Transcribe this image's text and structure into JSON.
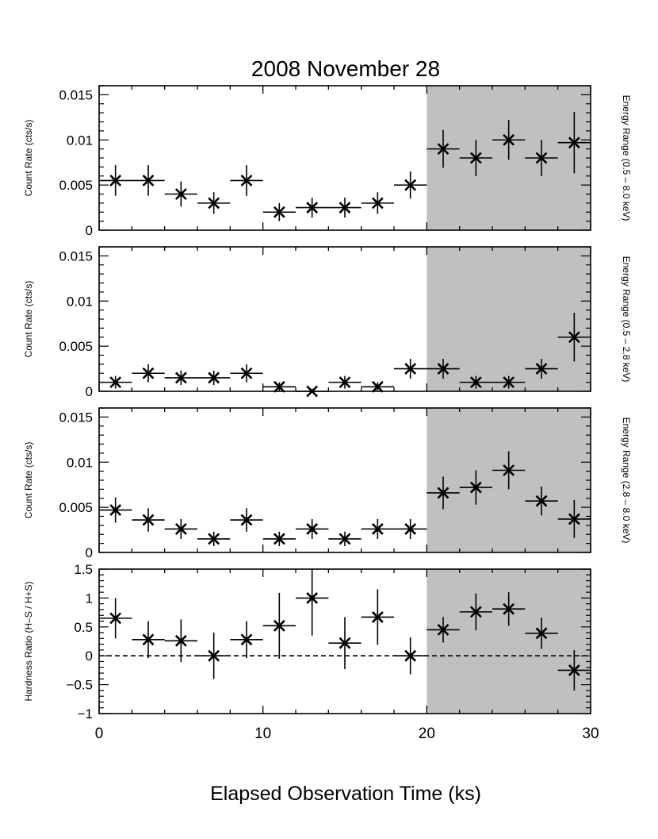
{
  "figure": {
    "title": "2008 November 28",
    "xlabel": "Elapsed Observation Time (ks)",
    "xlim": [
      0,
      30
    ],
    "xticks": [
      0,
      10,
      20,
      30
    ],
    "shade_range": [
      20,
      30
    ],
    "shade_color": "#c0c0c0",
    "x_bin_halfwidth": 1
  },
  "chart_data": [
    {
      "type": "scatter",
      "ylabel": "Count Rate (cts/s)",
      "right_label": "Energy Range (0.5 – 8.0 keV)",
      "ylim": [
        0,
        0.016
      ],
      "yticks": [
        0,
        0.005,
        0.01,
        0.015
      ],
      "ytick_labels": [
        "0",
        "0.005",
        "0.01",
        "0.015"
      ],
      "x": [
        1,
        3,
        5,
        7,
        9,
        11,
        13,
        15,
        17,
        19,
        21,
        23,
        25,
        27,
        29
      ],
      "y": [
        0.0055,
        0.0055,
        0.004,
        0.003,
        0.0055,
        0.002,
        0.0025,
        0.0025,
        0.003,
        0.005,
        0.009,
        0.008,
        0.01,
        0.008,
        0.0097
      ],
      "y_err": [
        0.0017,
        0.0017,
        0.0014,
        0.0012,
        0.0017,
        0.001,
        0.0011,
        0.0011,
        0.0012,
        0.0015,
        0.0021,
        0.002,
        0.0022,
        0.002,
        0.0034
      ]
    },
    {
      "type": "scatter",
      "ylabel": "Count Rate (cts/s)",
      "right_label": "Energy Range (0.5 – 2.8 keV)",
      "ylim": [
        0,
        0.016
      ],
      "yticks": [
        0,
        0.005,
        0.01,
        0.015
      ],
      "ytick_labels": [
        "0",
        "0.005",
        "0.01",
        "0.015"
      ],
      "x": [
        1,
        3,
        5,
        7,
        9,
        11,
        13,
        15,
        17,
        19,
        21,
        23,
        25,
        27,
        29
      ],
      "y": [
        0.001,
        0.002,
        0.0015,
        0.0015,
        0.002,
        0.0005,
        0.0,
        0.001,
        0.0005,
        0.0025,
        0.0025,
        0.001,
        0.001,
        0.0025,
        0.006
      ],
      "y_err": [
        0.0007,
        0.001,
        0.0008,
        0.0008,
        0.001,
        0.0005,
        0.0003,
        0.0007,
        0.0005,
        0.0011,
        0.0011,
        0.0007,
        0.0007,
        0.0011,
        0.0027
      ]
    },
    {
      "type": "scatter",
      "ylabel": "Count Rate (cts/s)",
      "right_label": "Energy Range (2.8 – 8.0 keV)",
      "ylim": [
        0,
        0.016
      ],
      "yticks": [
        0,
        0.005,
        0.01,
        0.015
      ],
      "ytick_labels": [
        "0",
        "0.005",
        "0.01",
        "0.015"
      ],
      "x": [
        1,
        3,
        5,
        7,
        9,
        11,
        13,
        15,
        17,
        19,
        21,
        23,
        25,
        27,
        29
      ],
      "y": [
        0.0047,
        0.0036,
        0.0026,
        0.0015,
        0.0036,
        0.0015,
        0.0026,
        0.0015,
        0.0026,
        0.0026,
        0.0066,
        0.0072,
        0.0091,
        0.0057,
        0.0037
      ],
      "y_err": [
        0.0014,
        0.0013,
        0.0011,
        0.0008,
        0.0013,
        0.0008,
        0.0011,
        0.0008,
        0.0011,
        0.0011,
        0.0018,
        0.0019,
        0.0021,
        0.0016,
        0.0021
      ]
    },
    {
      "type": "scatter",
      "ylabel": "Hardness Ratio (H–S / H+S)",
      "ylim": [
        -1,
        1.5
      ],
      "yticks": [
        -1,
        -0.5,
        0,
        0.5,
        1,
        1.5
      ],
      "ytick_labels": [
        "−1",
        "−0.5",
        "0",
        "0.5",
        "1",
        "1.5"
      ],
      "reference_line": 0,
      "x": [
        1,
        3,
        5,
        7,
        9,
        11,
        13,
        15,
        17,
        19,
        21,
        23,
        25,
        27,
        29
      ],
      "y": [
        0.65,
        0.28,
        0.26,
        0.0,
        0.28,
        0.52,
        1.0,
        0.22,
        0.67,
        0.0,
        0.45,
        0.76,
        0.81,
        0.39,
        -0.25
      ],
      "y_err": [
        0.35,
        0.32,
        0.37,
        0.4,
        0.32,
        0.57,
        0.65,
        0.45,
        0.48,
        0.32,
        0.22,
        0.32,
        0.29,
        0.27,
        0.35
      ]
    }
  ]
}
